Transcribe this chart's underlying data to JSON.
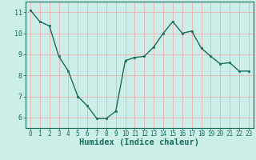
{
  "x": [
    0,
    1,
    2,
    3,
    4,
    5,
    6,
    7,
    8,
    9,
    10,
    11,
    12,
    13,
    14,
    15,
    16,
    17,
    18,
    19,
    20,
    21,
    22,
    23
  ],
  "y": [
    11.1,
    10.55,
    10.35,
    8.9,
    8.2,
    7.0,
    6.55,
    5.95,
    5.95,
    6.3,
    8.7,
    8.85,
    8.9,
    9.35,
    10.0,
    10.55,
    10.0,
    10.1,
    9.3,
    8.9,
    8.55,
    8.6,
    8.2,
    8.2
  ],
  "xlabel": "Humidex (Indice chaleur)",
  "ylim": [
    5.5,
    11.5
  ],
  "xlim": [
    -0.5,
    23.5
  ],
  "yticks": [
    6,
    7,
    8,
    9,
    10,
    11
  ],
  "xticks": [
    0,
    1,
    2,
    3,
    4,
    5,
    6,
    7,
    8,
    9,
    10,
    11,
    12,
    13,
    14,
    15,
    16,
    17,
    18,
    19,
    20,
    21,
    22,
    23
  ],
  "line_color": "#1a6b5a",
  "marker_color": "#1a6b5a",
  "bg_color": "#cceee8",
  "grid_color": "#e8b8b8",
  "axis_color": "#1a6b5a",
  "label_color": "#1a6b5a",
  "tick_color": "#1a6b5a",
  "tick_fontsize": 5.5,
  "xlabel_fontsize": 7.5
}
